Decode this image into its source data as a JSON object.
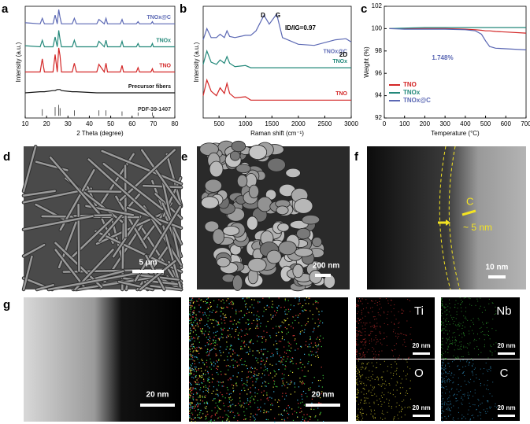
{
  "chart_data": [
    {
      "type": "line",
      "panel": "a",
      "x_label": "2 Theta (degree)",
      "y_label": "Intensity (a.u.)",
      "xlim": [
        10,
        80
      ],
      "xticks": [
        10,
        20,
        30,
        40,
        50,
        60,
        70,
        80
      ],
      "ylim": [
        -2,
        100
      ],
      "x": [
        10,
        17,
        18,
        19,
        23,
        24,
        25,
        25.7,
        26.3,
        27,
        32,
        33,
        34,
        43.5,
        44.5,
        47,
        47.8,
        48.5,
        54.5,
        55.3,
        56,
        62,
        62.8,
        63.5,
        68.8,
        69.5,
        70,
        80
      ],
      "series": [
        {
          "name": "TNOx@C",
          "color": "#5b68b4",
          "values": [
            85,
            84,
            89,
            84,
            84,
            92,
            84,
            97,
            90,
            84,
            84,
            89,
            84,
            84,
            88,
            84,
            89,
            84,
            84,
            88,
            84,
            84,
            86,
            84,
            84,
            86,
            84,
            84
          ]
        },
        {
          "name": "TNOx",
          "color": "#23887a",
          "values": [
            64,
            63,
            69,
            63,
            63,
            72,
            63,
            78,
            70,
            63,
            63,
            69,
            63,
            63,
            68,
            63,
            69,
            63,
            63,
            68,
            63,
            63,
            66,
            63,
            63,
            66,
            63,
            63
          ]
        },
        {
          "name": "TNO",
          "color": "#d32626",
          "values": [
            40,
            40,
            52,
            40,
            40,
            56,
            40,
            62,
            55,
            40,
            40,
            48,
            40,
            40,
            47,
            40,
            48,
            40,
            40,
            46,
            40,
            40,
            44,
            40,
            40,
            43,
            40,
            40
          ]
        },
        {
          "name": "Precursor fibers",
          "color": "#111111",
          "values": [
            21,
            22,
            22,
            22,
            23,
            23,
            24,
            24,
            24,
            23,
            22,
            22,
            22,
            21,
            21,
            21,
            21,
            21,
            21,
            21,
            21,
            21,
            21,
            21,
            21,
            21,
            21,
            21
          ]
        },
        {
          "name": "PDF-39-1407",
          "color": "#333333",
          "mode": "sticks",
          "values": [
            0,
            0,
            6,
            0,
            0,
            8,
            0,
            10,
            7,
            0,
            0,
            5,
            0,
            0,
            5,
            0,
            5,
            0,
            0,
            4,
            0,
            0,
            3,
            0,
            0,
            3,
            0,
            0
          ]
        }
      ]
    },
    {
      "type": "line",
      "panel": "b",
      "x_label": "Raman shift (cm⁻¹)",
      "y_label": "Intensity (a.u.)",
      "xlim": [
        200,
        3000
      ],
      "xticks": [
        500,
        1000,
        1500,
        2000,
        2500,
        3000
      ],
      "ylim": [
        0,
        100
      ],
      "x": [
        200,
        270,
        350,
        450,
        520,
        600,
        650,
        700,
        800,
        1000,
        1100,
        1200,
        1350,
        1450,
        1590,
        1700,
        2000,
        2300,
        2700,
        2900,
        3000
      ],
      "series": [
        {
          "name": "TNOx@C",
          "color": "#5b68b4",
          "values": [
            70,
            80,
            72,
            72,
            75,
            72,
            78,
            73,
            72,
            74,
            74,
            78,
            92,
            84,
            93,
            72,
            66,
            65,
            70,
            71,
            68
          ]
        },
        {
          "name": "TNOx",
          "color": "#23887a",
          "values": [
            48,
            60,
            50,
            48,
            52,
            49,
            55,
            49,
            46,
            47,
            45,
            45,
            45,
            45,
            45,
            45,
            45,
            45,
            45,
            45,
            45
          ]
        },
        {
          "name": "TNO",
          "color": "#d32626",
          "values": [
            20,
            34,
            24,
            20,
            27,
            22,
            31,
            22,
            18,
            19,
            16,
            16,
            16,
            16,
            16,
            16,
            16,
            16,
            16,
            16,
            16
          ]
        }
      ],
      "annotations": [
        "D",
        "G",
        "2D",
        "ID/IG=0.97"
      ]
    },
    {
      "type": "line",
      "panel": "c",
      "x_label": "Temperature (°C)",
      "y_label": "Weight (%)",
      "xlim": [
        0,
        700
      ],
      "xticks": [
        0,
        100,
        200,
        300,
        400,
        500,
        600,
        700
      ],
      "ylim": [
        92,
        102
      ],
      "yticks": [
        92,
        94,
        96,
        98,
        100,
        102
      ],
      "legend": "lower left",
      "x": [
        25,
        100,
        200,
        300,
        400,
        450,
        480,
        500,
        520,
        550,
        600,
        700
      ],
      "series": [
        {
          "name": "TNO",
          "color": "#d32626",
          "values": [
            100,
            100,
            100,
            100,
            99.95,
            99.9,
            99.85,
            99.8,
            99.8,
            99.75,
            99.7,
            99.6
          ]
        },
        {
          "name": "TNOx",
          "color": "#23887a",
          "values": [
            100,
            100.05,
            100.1,
            100.1,
            100.1,
            100.1,
            100.1,
            100.1,
            100.1,
            100.1,
            100.1,
            100.1
          ]
        },
        {
          "name": "TNOx@C",
          "color": "#5b68b4",
          "values": [
            100,
            99.95,
            99.95,
            99.95,
            99.9,
            99.8,
            99.5,
            98.9,
            98.4,
            98.25,
            98.2,
            98.1
          ]
        }
      ],
      "annotations": [
        "1.748%"
      ]
    }
  ],
  "panels": [
    {
      "letter": "d",
      "scale_bar": "5 µm"
    },
    {
      "letter": "e",
      "scale_bar": "200 nm"
    },
    {
      "letter": "f",
      "scale_bar": "10 nm",
      "annotations": [
        "C",
        "~ 5 nm"
      ]
    },
    {
      "letter": "g",
      "images": [
        {
          "scale_bar": "20 nm"
        },
        {
          "scale_bar": "20 nm"
        },
        {
          "element": "Ti",
          "scale_bar": "20 nm"
        },
        {
          "element": "Nb",
          "scale_bar": "20 nm"
        },
        {
          "element": "O",
          "scale_bar": "20 nm"
        },
        {
          "element": "C",
          "scale_bar": "20 nm"
        }
      ]
    }
  ]
}
